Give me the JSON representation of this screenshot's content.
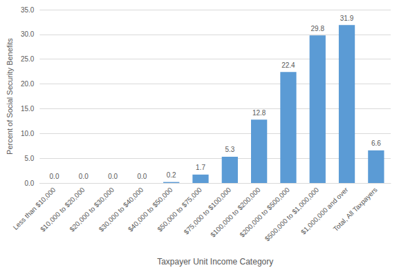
{
  "chart_data": {
    "type": "bar",
    "x_label": "Taxpayer Unit Income Category",
    "y_label": "Percent of Social Security Benefits",
    "categories": [
      "Less than $10,000",
      "$10,000 to $20,000",
      "$20,000 to $30,000",
      "$30,000 to $40,000",
      "$40,000 to $50,000",
      "$50,000 to $75,000",
      "$75,000 to $100,000",
      "$100,000 to $200,000",
      "$200,000 to $500,000",
      "$500,000 to $1,000,000",
      "$1,000,000 and over",
      "Total, All Taxpayers"
    ],
    "values": [
      0,
      0,
      0,
      0,
      0.2,
      1.7,
      5.3,
      12.8,
      22.4,
      29.8,
      31.9,
      6.6
    ],
    "value_labels": [
      "0.0",
      "0.0",
      "0.0",
      "0.0",
      "0.2",
      "1.7",
      "5.3",
      "12.8",
      "22.4",
      "29.8",
      "31.9",
      "6.6"
    ],
    "color": "#5b9bd5",
    "ylim": [
      0,
      35
    ],
    "yticks": [
      {
        "value": 0,
        "label": "0.0"
      },
      {
        "value": 5,
        "label": "5.0"
      },
      {
        "value": 10,
        "label": "10.0"
      },
      {
        "value": 15,
        "label": "15.0"
      },
      {
        "value": 20,
        "label": "20.0"
      },
      {
        "value": 25,
        "label": "25.0"
      },
      {
        "value": 30,
        "label": "30.0"
      },
      {
        "value": 35,
        "label": "35.0"
      }
    ],
    "grid": true,
    "data_labels": true
  }
}
